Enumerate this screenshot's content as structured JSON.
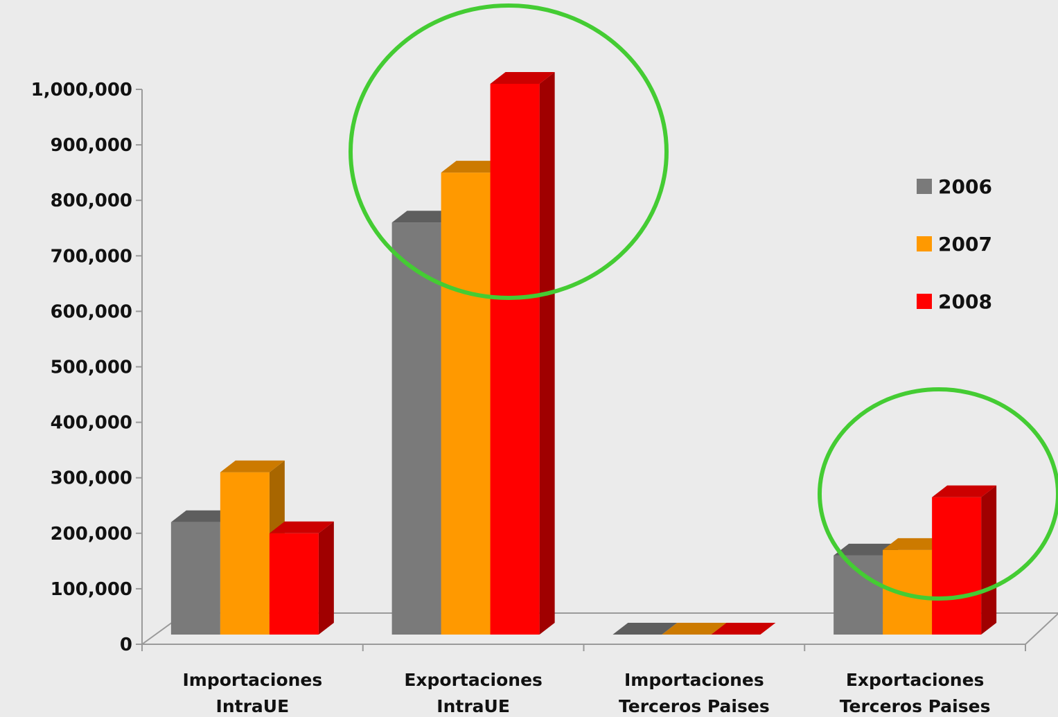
{
  "chart_data": {
    "type": "bar",
    "categories": [
      [
        "Importaciones",
        "IntraUE"
      ],
      [
        "Exportaciones",
        "IntraUE"
      ],
      [
        "Importaciones",
        "Terceros Paises"
      ],
      [
        "Exportaciones",
        "Terceros Paises"
      ]
    ],
    "series": [
      {
        "name": "2006",
        "values": [
          220000,
          760000,
          0,
          160000
        ]
      },
      {
        "name": "2007",
        "values": [
          310000,
          850000,
          0,
          170000
        ]
      },
      {
        "name": "2008",
        "values": [
          200000,
          1010000,
          0,
          265000
        ]
      }
    ],
    "ylim": [
      0,
      1000000
    ],
    "yticks": [
      0,
      100000,
      200000,
      300000,
      400000,
      500000,
      600000,
      700000,
      800000,
      900000,
      1000000
    ],
    "ytick_labels": [
      "0",
      "100,000",
      "200,000",
      "300,000",
      "400,000",
      "500,000",
      "600,000",
      "700,000",
      "800,000",
      "900,000",
      "1,000,000"
    ],
    "legend_position": "right",
    "grid": false,
    "three_d": true,
    "colors": {
      "2006": {
        "front": "#7a7a7a",
        "top": "#5e5e5e",
        "side": "#555555"
      },
      "2007": {
        "front": "#ff9900",
        "top": "#cc7a00",
        "side": "#a86600"
      },
      "2008": {
        "front": "#ff0000",
        "top": "#cc0000",
        "side": "#a00000"
      }
    },
    "highlight_color": "#44cc33",
    "highlighted_categories": [
      1,
      3
    ]
  }
}
